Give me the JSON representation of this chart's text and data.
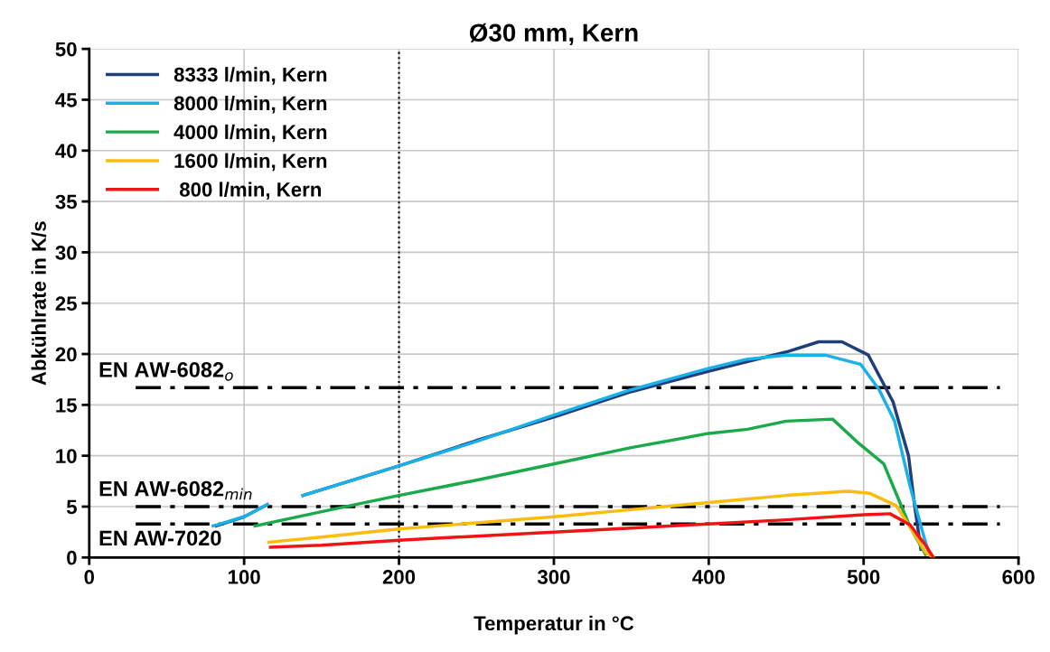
{
  "chart_data": {
    "type": "line",
    "title": "Ø30 mm, Kern",
    "xlabel": "Temperatur in °C",
    "ylabel": "Abkühlrate in K/s",
    "xlim": [
      0,
      600
    ],
    "xticks": [
      0,
      100,
      200,
      300,
      400,
      500,
      600
    ],
    "ylim": [
      0,
      50
    ],
    "yticks": [
      0,
      5,
      10,
      15,
      20,
      25,
      30,
      35,
      40,
      45,
      50
    ],
    "grid": true,
    "legend": "top left",
    "line_style": "solid",
    "marker": "none",
    "series": [
      {
        "name": "8333 l/min, Kern",
        "color": "#1f3f7a",
        "x": [
          82,
          100,
          115,
          125,
          138,
          200,
          250,
          300,
          350,
          400,
          450,
          471,
          486,
          503,
          519,
          529,
          533,
          537
        ],
        "values": [
          3.1,
          4.0,
          5.2,
          null,
          6.1,
          9.0,
          11.5,
          13.8,
          16.3,
          18.3,
          20.2,
          21.2,
          21.2,
          19.9,
          15.3,
          10.0,
          5.0,
          0.8
        ]
      },
      {
        "name": "8000 l/min, Kern",
        "color": "#1ab0ea",
        "x": [
          80,
          100,
          115,
          125,
          138,
          200,
          250,
          300,
          350,
          400,
          425,
          450,
          475,
          498,
          510,
          520,
          530,
          539,
          542
        ],
        "values": [
          3.1,
          4.0,
          5.2,
          null,
          6.1,
          9.0,
          11.4,
          14.0,
          16.5,
          18.6,
          19.5,
          19.9,
          19.9,
          19.0,
          16.5,
          13.4,
          7.0,
          2.0,
          0.5
        ]
      },
      {
        "name": "4000 l/min, Kern",
        "color": "#1aaa4a",
        "x": [
          107,
          150,
          200,
          250,
          300,
          350,
          400,
          425,
          450,
          480,
          497,
          513,
          530,
          540
        ],
        "values": [
          3.1,
          4.5,
          6.1,
          7.6,
          9.2,
          10.8,
          12.2,
          12.6,
          13.4,
          13.6,
          11.2,
          9.2,
          3.0,
          0.3
        ]
      },
      {
        "name": "1600 l/min, Kern",
        "color": "#fbbc0c",
        "x": [
          116,
          150,
          200,
          250,
          300,
          350,
          400,
          450,
          490,
          504,
          521,
          530,
          540,
          545
        ],
        "values": [
          1.5,
          2.0,
          2.8,
          3.4,
          4.0,
          4.7,
          5.4,
          6.1,
          6.5,
          6.3,
          5.1,
          3.0,
          0.5,
          0.0
        ]
      },
      {
        "name": " 800 l/min, Kern",
        "color": "#f01414",
        "x": [
          117,
          150,
          200,
          250,
          300,
          350,
          400,
          450,
          500,
          517,
          530,
          540,
          545
        ],
        "values": [
          1.0,
          1.2,
          1.7,
          2.1,
          2.5,
          2.9,
          3.3,
          3.7,
          4.2,
          4.3,
          3.2,
          1.2,
          0.0
        ]
      }
    ],
    "ref_lines": [
      {
        "axis": "y",
        "value": 16.7,
        "label": "EN AW-6082$_{o}$",
        "color": "#000000",
        "line_style": "dashdot"
      },
      {
        "axis": "y",
        "value": 5.0,
        "label": "EN AW-6082$_{min}$",
        "color": "#000000",
        "line_style": "dashdot"
      },
      {
        "axis": "y",
        "value": 3.3,
        "label": "EN AW-7020",
        "color": "#000000",
        "line_style": "dashdot"
      },
      {
        "axis": "x",
        "value": 200,
        "label": null,
        "color": "#000000",
        "line_style": "dotted"
      }
    ]
  }
}
